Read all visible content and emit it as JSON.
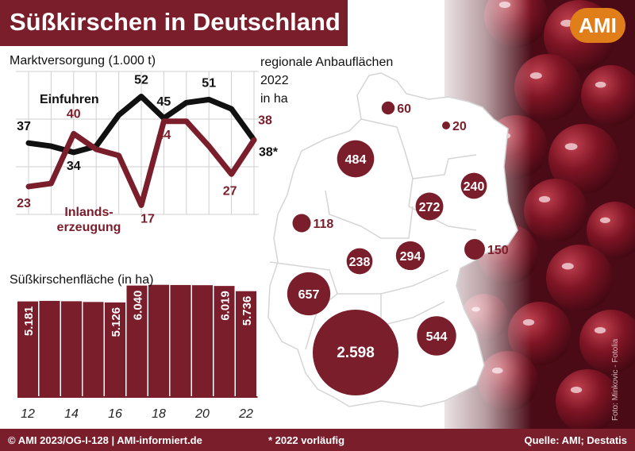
{
  "header": {
    "title": "Süßkirschen in Deutschland",
    "logo_text": "AMI"
  },
  "colors": {
    "brand": "#7a1e2c",
    "import_line": "#111111",
    "production_line": "#7a1e2c",
    "logo": "#e07f1a"
  },
  "footer": {
    "copyright": "© AMI 2023/OG-I-128 | AMI-informiert.de",
    "note": "* 2022 vorläufig",
    "source": "Quelle: AMI; Destatis"
  },
  "photo_credit": "Foto: Minkovic - Fotolia",
  "chart_data": [
    {
      "type": "line",
      "title": "Marktversorgung (1.000 t)",
      "x": [
        2012,
        2013,
        2014,
        2015,
        2016,
        2017,
        2018,
        2019,
        2020,
        2021,
        2022
      ],
      "grid": true,
      "ylim": [
        12,
        58
      ],
      "series": [
        {
          "name": "Einfuhren",
          "values": [
            37,
            36,
            34,
            36,
            46,
            52,
            45,
            50,
            51,
            48,
            38
          ],
          "labels": [
            "37",
            "",
            "34",
            "",
            "",
            "52",
            "45",
            "",
            "51",
            "",
            "38*"
          ]
        },
        {
          "name": "Inlandserzeugung",
          "values": [
            23,
            24,
            40,
            35,
            33,
            17,
            44,
            44,
            36,
            27,
            38
          ],
          "labels": [
            "23",
            "",
            "40",
            "",
            "",
            "17",
            "44",
            "",
            "",
            "27",
            "38"
          ]
        }
      ],
      "series_label_lines": {
        "Einfuhren": [
          "Einfuhren"
        ],
        "Inlandserzeugung": [
          "Inlands-",
          "erzeugung"
        ]
      }
    },
    {
      "type": "bar",
      "title": "Süßkirschenfläche (in ha)",
      "categories": [
        "12",
        "13",
        "14",
        "15",
        "16",
        "17",
        "18",
        "19",
        "20",
        "21",
        "22"
      ],
      "x_tick_labels": [
        "12",
        "14",
        "16",
        "18",
        "20",
        "22"
      ],
      "values": [
        5181,
        5210,
        5190,
        5150,
        5126,
        6040,
        6080,
        6070,
        6060,
        6019,
        5736
      ],
      "value_labels": [
        "5.181",
        "",
        "",
        "",
        "5.126",
        "6.040",
        "",
        "",
        "",
        "6.019",
        "5.736"
      ],
      "ylim": [
        0,
        6300
      ]
    },
    {
      "type": "bubble-map",
      "title_lines": [
        "regionale Anbauflächen",
        "2022",
        "in ha"
      ],
      "regions": [
        {
          "name": "Schleswig-Holstein",
          "value": 60,
          "label": "60"
        },
        {
          "name": "Mecklenburg-Vorpommern",
          "value": 20,
          "label": "20"
        },
        {
          "name": "Niedersachsen",
          "value": 484,
          "label": "484"
        },
        {
          "name": "Brandenburg",
          "value": 240,
          "label": "240"
        },
        {
          "name": "Sachsen-Anhalt",
          "value": 272,
          "label": "272"
        },
        {
          "name": "Nordrhein-Westfalen",
          "value": 118,
          "label": "118"
        },
        {
          "name": "Sachsen",
          "value": 150,
          "label": "150"
        },
        {
          "name": "Hessen",
          "value": 238,
          "label": "238"
        },
        {
          "name": "Thüringen",
          "value": 294,
          "label": "294"
        },
        {
          "name": "Rheinland-Pfalz",
          "value": 657,
          "label": "657"
        },
        {
          "name": "Baden-Württemberg",
          "value": 2598,
          "label": "2.598"
        },
        {
          "name": "Bayern",
          "value": 544,
          "label": "544"
        }
      ]
    }
  ]
}
